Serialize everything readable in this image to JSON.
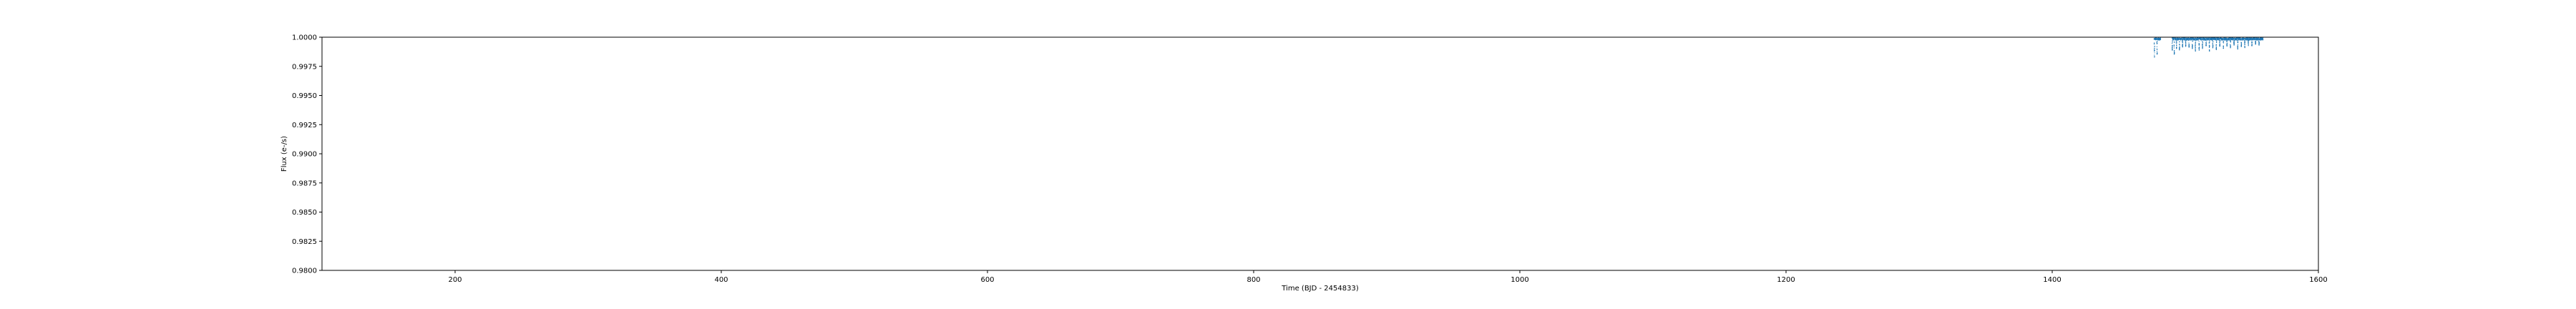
{
  "chart_data": {
    "type": "scatter",
    "title": "",
    "xlabel": "Time (BJD - 2454833)",
    "ylabel": "Flux (e-/s)",
    "xlim": [
      100,
      1600
    ],
    "ylim": [
      0.98,
      1.0
    ],
    "xticks": [
      200,
      400,
      600,
      800,
      1000,
      1200,
      1400,
      1600
    ],
    "xtick_labels": [
      "200",
      "400",
      "600",
      "800",
      "1000",
      "1200",
      "1400",
      "1600"
    ],
    "yticks": [
      0.98,
      0.9825,
      0.985,
      0.9875,
      0.99,
      0.9925,
      0.995,
      0.9975,
      1.0
    ],
    "ytick_labels": [
      "0.9800",
      "0.9825",
      "0.9850",
      "0.9875",
      "0.9900",
      "0.9925",
      "0.9950",
      "0.9975",
      "1.0000"
    ],
    "grid": false,
    "legend": "none",
    "series_color": "#1f77b4",
    "series": [
      {
        "segments": [
          {
            "x_start": 1476.5,
            "x_end": 1481.5,
            "baseline": 0.99985,
            "scatter": 0.0001
          },
          {
            "x_start": 1490.0,
            "x_end": 1558.5,
            "baseline": 0.99985,
            "scatter": 0.0001
          }
        ],
        "transits": [
          {
            "x": 1476.8,
            "depth": 0.0016
          },
          {
            "x": 1478.8,
            "depth": 0.0013
          },
          {
            "x": 1490.2,
            "depth": 0.001
          },
          {
            "x": 1491.7,
            "depth": 0.0013
          },
          {
            "x": 1493.4,
            "depth": 0.0008
          },
          {
            "x": 1495.6,
            "depth": 0.0009
          },
          {
            "x": 1497.9,
            "depth": 0.0007
          },
          {
            "x": 1500.3,
            "depth": 0.0006
          },
          {
            "x": 1502.8,
            "depth": 0.0007
          },
          {
            "x": 1505.3,
            "depth": 0.0008
          },
          {
            "x": 1507.6,
            "depth": 0.001
          },
          {
            "x": 1510.4,
            "depth": 0.0009
          },
          {
            "x": 1512.9,
            "depth": 0.0008
          },
          {
            "x": 1515.6,
            "depth": 0.0006
          },
          {
            "x": 1518.1,
            "depth": 0.001
          },
          {
            "x": 1520.7,
            "depth": 0.0007
          },
          {
            "x": 1523.3,
            "depth": 0.0009
          },
          {
            "x": 1525.9,
            "depth": 0.0006
          },
          {
            "x": 1528.6,
            "depth": 0.0008
          },
          {
            "x": 1531.3,
            "depth": 0.0006
          },
          {
            "x": 1533.9,
            "depth": 0.0007
          },
          {
            "x": 1536.6,
            "depth": 0.0005
          },
          {
            "x": 1539.4,
            "depth": 0.0008
          },
          {
            "x": 1542.1,
            "depth": 0.0006
          },
          {
            "x": 1544.7,
            "depth": 0.0007
          },
          {
            "x": 1547.4,
            "depth": 0.0005
          },
          {
            "x": 1550.0,
            "depth": 0.0006
          },
          {
            "x": 1552.8,
            "depth": 0.0004
          },
          {
            "x": 1555.4,
            "depth": 0.0005
          }
        ]
      }
    ]
  }
}
